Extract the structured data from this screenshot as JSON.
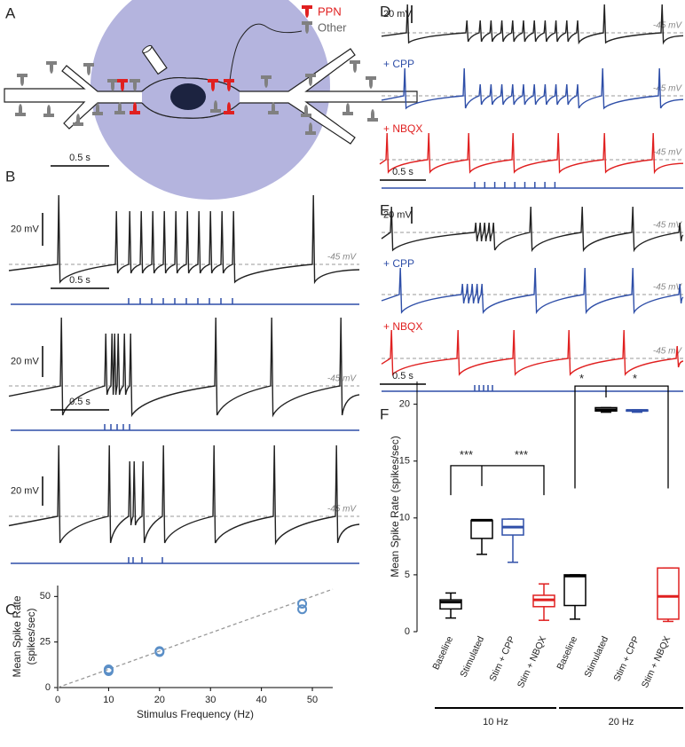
{
  "panel_labels": [
    "A",
    "B",
    "C",
    "D",
    "E",
    "F"
  ],
  "legend": {
    "ppn": "PPN",
    "other": "Other"
  },
  "scale": {
    "time": "0.5 s",
    "voltage": "20 mV",
    "threshold": "-45 mV"
  },
  "conditions": [
    "+ CPP",
    "+ NBQX"
  ],
  "chart_data": [
    {
      "type": "scatter",
      "y_label": [
        "Mean Spike Rate",
        "(spikes/sec)"
      ],
      "x_label": "Stimulus Frequency (Hz)",
      "x": [
        10,
        10,
        10,
        20,
        20,
        48,
        48
      ],
      "values": [
        10,
        9,
        9.5,
        20,
        19.5,
        46,
        43
      ],
      "xlim": [
        0,
        54
      ],
      "ylim": [
        0,
        56
      ],
      "xticks": [
        0,
        10,
        20,
        30,
        40,
        50
      ],
      "yticks": [
        0,
        25,
        50
      ],
      "color": "#5b8fc7"
    },
    {
      "type": "box",
      "y_label": "Mean Spike Rate  (spikes/sec)",
      "categories": [
        "Baseline",
        "Stimulated",
        "Stim + CPP",
        "Stim + NBQX",
        "Baseline",
        "Stimulated",
        "Stim + CPP",
        "Stim + NBQX"
      ],
      "groups": [
        "10 Hz",
        "20 Hz"
      ],
      "boxes": [
        {
          "min": 1.2,
          "q1": 2.0,
          "median": 2.6,
          "q3": 2.8,
          "max": 3.4,
          "color": "#000000"
        },
        {
          "min": 6.8,
          "q1": 8.2,
          "median": 9.8,
          "q3": 9.8,
          "max": 9.8,
          "color": "#000000"
        },
        {
          "min": 6.1,
          "q1": 8.5,
          "median": 9.2,
          "q3": 9.9,
          "max": 9.9,
          "color": "#2f4fa8"
        },
        {
          "min": 1.0,
          "q1": 2.2,
          "median": 2.8,
          "q3": 3.2,
          "max": 4.2,
          "color": "#e02020"
        },
        {
          "min": 1.1,
          "q1": 2.3,
          "median": 4.9,
          "q3": 5.0,
          "max": 5.0,
          "color": "#000000"
        },
        {
          "min": 19.3,
          "q1": 19.4,
          "median": 19.5,
          "q3": 19.7,
          "max": 19.7,
          "color": "#000000"
        },
        {
          "min": 19.3,
          "q1": 19.4,
          "median": 19.45,
          "q3": 19.5,
          "max": 19.5,
          "color": "#2f4fa8"
        },
        {
          "min": 0.9,
          "q1": 1.1,
          "median": 3.1,
          "q3": 5.6,
          "max": 5.6,
          "color": "#e02020"
        }
      ],
      "significance": [
        "***",
        "***",
        "*",
        "*"
      ],
      "ylim": [
        0,
        22
      ],
      "yticks": [
        0,
        5,
        10,
        15,
        20
      ]
    }
  ]
}
